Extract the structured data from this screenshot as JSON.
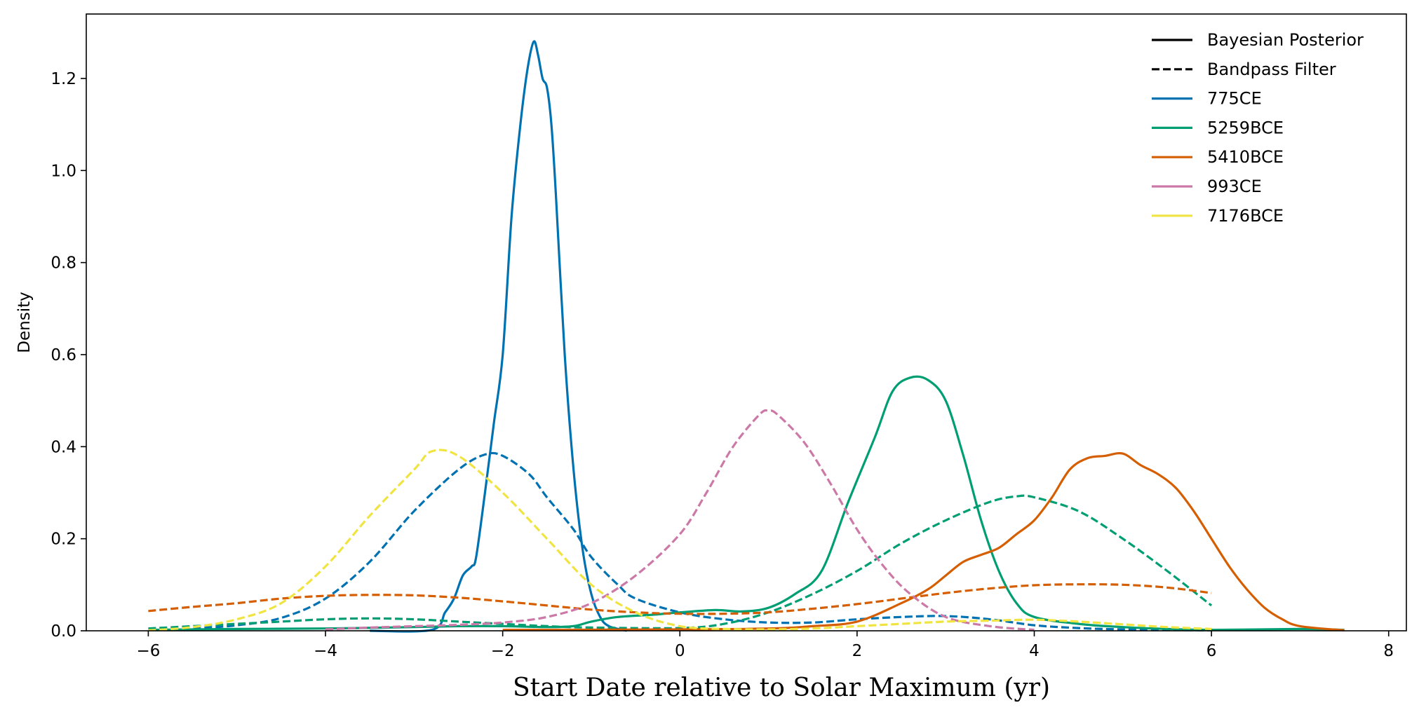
{
  "chart_data": {
    "type": "line",
    "title": "",
    "xlabel": "Start Date relative to Solar Maximum (yr)",
    "ylabel": "Density",
    "xlim": [
      -6.7,
      8.2
    ],
    "ylim": [
      0,
      1.34
    ],
    "xticks": [
      -6,
      -4,
      -2,
      0,
      2,
      4,
      6,
      8
    ],
    "xtick_labels": [
      "−6",
      "−4",
      "−2",
      "0",
      "2",
      "4",
      "6",
      "8"
    ],
    "yticks": [
      0.0,
      0.2,
      0.4,
      0.6,
      0.8,
      1.0,
      1.2
    ],
    "ytick_labels": [
      "0.0",
      "0.2",
      "0.4",
      "0.6",
      "0.8",
      "1.0",
      "1.2"
    ],
    "grid": false,
    "legend_position": "top-right",
    "legend": [
      {
        "label": "Bayesian Posterior",
        "color": "#000000",
        "style": "solid"
      },
      {
        "label": "Bandpass Filter",
        "color": "#000000",
        "style": "dashed"
      },
      {
        "label": "775CE",
        "color": "#0072B2",
        "style": "solid"
      },
      {
        "label": "5259BCE",
        "color": "#009E73",
        "style": "solid"
      },
      {
        "label": "5410BCE",
        "color": "#D55E00",
        "style": "solid"
      },
      {
        "label": "993CE",
        "color": "#CC79A7",
        "style": "solid"
      },
      {
        "label": "7176BCE",
        "color": "#F0E442",
        "style": "solid"
      }
    ],
    "series": [
      {
        "event": "775CE",
        "method": "Bandpass Filter",
        "color": "#0072B2",
        "style": "dashed",
        "points": [
          [
            -6,
            0.002
          ],
          [
            -5.5,
            0.005
          ],
          [
            -5,
            0.012
          ],
          [
            -4.5,
            0.028
          ],
          [
            -4,
            0.07
          ],
          [
            -3.5,
            0.15
          ],
          [
            -3,
            0.26
          ],
          [
            -2.5,
            0.35
          ],
          [
            -2.2,
            0.383
          ],
          [
            -2,
            0.38
          ],
          [
            -1.7,
            0.34
          ],
          [
            -1.5,
            0.29
          ],
          [
            -1.2,
            0.22
          ],
          [
            -1,
            0.16
          ],
          [
            -0.7,
            0.1
          ],
          [
            -0.5,
            0.07
          ],
          [
            0,
            0.04
          ],
          [
            0.5,
            0.025
          ],
          [
            1,
            0.018
          ],
          [
            1.5,
            0.018
          ],
          [
            2,
            0.025
          ],
          [
            2.5,
            0.03
          ],
          [
            3,
            0.032
          ],
          [
            3.5,
            0.025
          ],
          [
            4,
            0.012
          ],
          [
            4.5,
            0.006
          ],
          [
            5,
            0.003
          ],
          [
            6,
            0.001
          ]
        ]
      },
      {
        "event": "775CE",
        "method": "Bayesian Posterior",
        "color": "#0072B2",
        "style": "solid",
        "points": [
          [
            -3.5,
            0
          ],
          [
            -2.8,
            0.002
          ],
          [
            -2.65,
            0.04
          ],
          [
            -2.55,
            0.07
          ],
          [
            -2.45,
            0.12
          ],
          [
            -2.35,
            0.14
          ],
          [
            -2.3,
            0.16
          ],
          [
            -2.2,
            0.3
          ],
          [
            -2.1,
            0.45
          ],
          [
            -2,
            0.6
          ],
          [
            -1.9,
            0.9
          ],
          [
            -1.8,
            1.1
          ],
          [
            -1.72,
            1.22
          ],
          [
            -1.65,
            1.28
          ],
          [
            -1.6,
            1.25
          ],
          [
            -1.55,
            1.2
          ],
          [
            -1.5,
            1.18
          ],
          [
            -1.45,
            1.1
          ],
          [
            -1.4,
            0.95
          ],
          [
            -1.3,
            0.6
          ],
          [
            -1.2,
            0.35
          ],
          [
            -1.1,
            0.18
          ],
          [
            -1,
            0.08
          ],
          [
            -0.9,
            0.03
          ],
          [
            -0.8,
            0.01
          ],
          [
            -0.6,
            0
          ]
        ]
      },
      {
        "event": "5259BCE",
        "method": "Bandpass Filter",
        "color": "#009E73",
        "style": "dashed",
        "points": [
          [
            -6,
            0.005
          ],
          [
            -5.5,
            0.01
          ],
          [
            -5,
            0.015
          ],
          [
            -4.5,
            0.02
          ],
          [
            -4,
            0.025
          ],
          [
            -3.5,
            0.027
          ],
          [
            -3,
            0.025
          ],
          [
            -2.5,
            0.02
          ],
          [
            -2,
            0.015
          ],
          [
            -1.5,
            0.01
          ],
          [
            -1,
            0.007
          ],
          [
            0,
            0.006
          ],
          [
            0.5,
            0.015
          ],
          [
            1,
            0.04
          ],
          [
            1.5,
            0.08
          ],
          [
            2,
            0.13
          ],
          [
            2.5,
            0.19
          ],
          [
            3,
            0.24
          ],
          [
            3.5,
            0.28
          ],
          [
            3.8,
            0.292
          ],
          [
            4,
            0.29
          ],
          [
            4.5,
            0.26
          ],
          [
            5,
            0.2
          ],
          [
            5.5,
            0.13
          ],
          [
            6,
            0.055
          ]
        ]
      },
      {
        "event": "5259BCE",
        "method": "Bayesian Posterior",
        "color": "#009E73",
        "style": "solid",
        "points": [
          [
            -6,
            0.002
          ],
          [
            -5,
            0.004
          ],
          [
            -4,
            0.005
          ],
          [
            -3,
            0.008
          ],
          [
            -2.5,
            0.01
          ],
          [
            -2,
            0.01
          ],
          [
            -1.5,
            0.008
          ],
          [
            -1.2,
            0.01
          ],
          [
            -1,
            0.02
          ],
          [
            -0.7,
            0.03
          ],
          [
            -0.3,
            0.035
          ],
          [
            0,
            0.04
          ],
          [
            0.4,
            0.045
          ],
          [
            0.7,
            0.042
          ],
          [
            1,
            0.05
          ],
          [
            1.3,
            0.08
          ],
          [
            1.6,
            0.13
          ],
          [
            1.9,
            0.28
          ],
          [
            2.2,
            0.42
          ],
          [
            2.4,
            0.52
          ],
          [
            2.6,
            0.55
          ],
          [
            2.8,
            0.545
          ],
          [
            3,
            0.5
          ],
          [
            3.2,
            0.38
          ],
          [
            3.4,
            0.24
          ],
          [
            3.6,
            0.13
          ],
          [
            3.8,
            0.06
          ],
          [
            4,
            0.03
          ],
          [
            4.5,
            0.015
          ],
          [
            5,
            0.008
          ],
          [
            5.5,
            0.004
          ],
          [
            6,
            0.002
          ],
          [
            7,
            0.004
          ],
          [
            7.5,
            0.002
          ]
        ]
      },
      {
        "event": "5410BCE",
        "method": "Bandpass Filter",
        "color": "#D55E00",
        "style": "dashed",
        "points": [
          [
            -6,
            0.043
          ],
          [
            -5.5,
            0.052
          ],
          [
            -5,
            0.06
          ],
          [
            -4.5,
            0.07
          ],
          [
            -4,
            0.076
          ],
          [
            -3.5,
            0.078
          ],
          [
            -3,
            0.077
          ],
          [
            -2.5,
            0.072
          ],
          [
            -2,
            0.064
          ],
          [
            -1.5,
            0.055
          ],
          [
            -1,
            0.046
          ],
          [
            -0.5,
            0.04
          ],
          [
            0,
            0.037
          ],
          [
            0.5,
            0.037
          ],
          [
            1,
            0.04
          ],
          [
            1.5,
            0.048
          ],
          [
            2,
            0.058
          ],
          [
            2.5,
            0.07
          ],
          [
            3,
            0.082
          ],
          [
            3.5,
            0.092
          ],
          [
            4,
            0.099
          ],
          [
            4.5,
            0.101
          ],
          [
            5,
            0.1
          ],
          [
            5.5,
            0.094
          ],
          [
            6,
            0.082
          ]
        ]
      },
      {
        "event": "5410BCE",
        "method": "Bayesian Posterior",
        "color": "#D55E00",
        "style": "solid",
        "points": [
          [
            -2,
            0.002
          ],
          [
            0,
            0.003
          ],
          [
            1,
            0.005
          ],
          [
            1.5,
            0.01
          ],
          [
            2,
            0.02
          ],
          [
            2.5,
            0.06
          ],
          [
            2.8,
            0.09
          ],
          [
            3,
            0.12
          ],
          [
            3.2,
            0.15
          ],
          [
            3.4,
            0.165
          ],
          [
            3.6,
            0.18
          ],
          [
            3.8,
            0.21
          ],
          [
            4,
            0.24
          ],
          [
            4.2,
            0.29
          ],
          [
            4.4,
            0.35
          ],
          [
            4.6,
            0.375
          ],
          [
            4.8,
            0.38
          ],
          [
            5,
            0.385
          ],
          [
            5.2,
            0.36
          ],
          [
            5.4,
            0.34
          ],
          [
            5.6,
            0.31
          ],
          [
            5.8,
            0.26
          ],
          [
            6,
            0.2
          ],
          [
            6.2,
            0.14
          ],
          [
            6.4,
            0.09
          ],
          [
            6.6,
            0.05
          ],
          [
            6.8,
            0.025
          ],
          [
            7,
            0.01
          ],
          [
            7.5,
            0.001
          ]
        ]
      },
      {
        "event": "993CE",
        "method": "Bandpass Filter",
        "color": "#CC79A7",
        "style": "dashed",
        "points": [
          [
            -4,
            0.003
          ],
          [
            -3.5,
            0.007
          ],
          [
            -3,
            0.01
          ],
          [
            -2.5,
            0.013
          ],
          [
            -2,
            0.018
          ],
          [
            -1.5,
            0.03
          ],
          [
            -1,
            0.06
          ],
          [
            -0.5,
            0.12
          ],
          [
            0,
            0.21
          ],
          [
            0.3,
            0.3
          ],
          [
            0.6,
            0.4
          ],
          [
            0.9,
            0.47
          ],
          [
            1,
            0.478
          ],
          [
            1.1,
            0.47
          ],
          [
            1.4,
            0.41
          ],
          [
            1.7,
            0.32
          ],
          [
            2,
            0.22
          ],
          [
            2.3,
            0.14
          ],
          [
            2.6,
            0.08
          ],
          [
            3,
            0.03
          ],
          [
            3.5,
            0.01
          ],
          [
            4,
            0.002
          ]
        ]
      },
      {
        "event": "7176BCE",
        "method": "Bandpass Filter",
        "color": "#F0E442",
        "style": "dashed",
        "points": [
          [
            -6,
            0.001
          ],
          [
            -5.5,
            0.008
          ],
          [
            -5,
            0.025
          ],
          [
            -4.5,
            0.06
          ],
          [
            -4,
            0.14
          ],
          [
            -3.5,
            0.25
          ],
          [
            -3,
            0.35
          ],
          [
            -2.8,
            0.39
          ],
          [
            -2.5,
            0.38
          ],
          [
            -2,
            0.3
          ],
          [
            -1.5,
            0.2
          ],
          [
            -1,
            0.1
          ],
          [
            -0.5,
            0.04
          ],
          [
            0,
            0.01
          ],
          [
            0.5,
            0.004
          ],
          [
            1,
            0.003
          ],
          [
            1.5,
            0.005
          ],
          [
            2,
            0.01
          ],
          [
            2.5,
            0.015
          ],
          [
            3,
            0.02
          ],
          [
            3.5,
            0.022
          ],
          [
            4,
            0.024
          ],
          [
            4.5,
            0.02
          ],
          [
            5,
            0.014
          ],
          [
            5.5,
            0.008
          ],
          [
            6,
            0.004
          ]
        ]
      }
    ]
  }
}
